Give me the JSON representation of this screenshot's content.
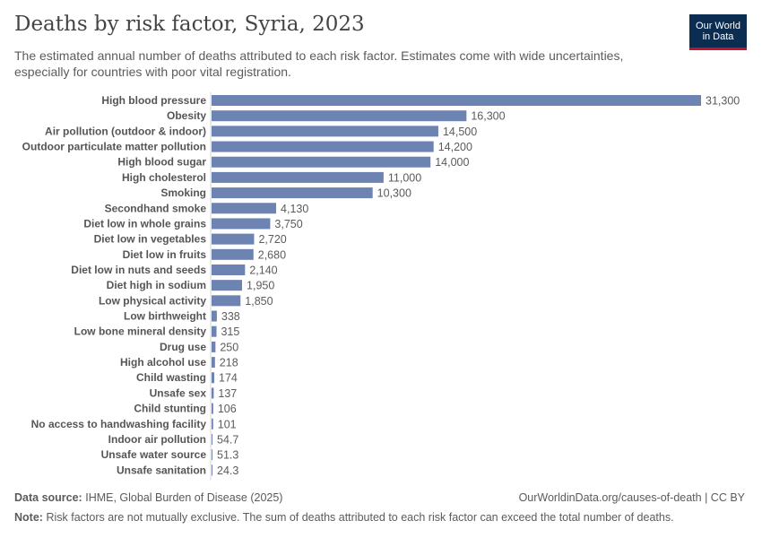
{
  "header": {
    "title": "Deaths by risk factor, Syria, 2023",
    "subtitle": "The estimated annual number of deaths attributed to each risk factor. Estimates come with wide uncertainties, especially for countries with poor vital registration.",
    "logo_line1": "Our World",
    "logo_line2": "in Data"
  },
  "colors": {
    "bar": "#6d83b2",
    "logo_bg": "#0b2d52",
    "logo_accent": "#c8102e"
  },
  "chart_data": {
    "type": "bar",
    "orientation": "horizontal",
    "title": "Deaths by risk factor, Syria, 2023",
    "xlabel": "",
    "ylabel": "",
    "xlim": [
      0,
      31300
    ],
    "categories": [
      "High blood pressure",
      "Obesity",
      "Air pollution (outdoor & indoor)",
      "Outdoor particulate matter pollution",
      "High blood sugar",
      "High cholesterol",
      "Smoking",
      "Secondhand smoke",
      "Diet low in whole grains",
      "Diet low in vegetables",
      "Diet low in fruits",
      "Diet low in nuts and seeds",
      "Diet high in sodium",
      "Low physical activity",
      "Low birthweight",
      "Low bone mineral density",
      "Drug use",
      "High alcohol use",
      "Child wasting",
      "Unsafe sex",
      "Child stunting",
      "No access to handwashing facility",
      "Indoor air pollution",
      "Unsafe water source",
      "Unsafe sanitation"
    ],
    "values": [
      31300,
      16300,
      14500,
      14200,
      14000,
      11000,
      10300,
      4130,
      3750,
      2720,
      2680,
      2140,
      1950,
      1850,
      338,
      315,
      250,
      218,
      174,
      137,
      106,
      101,
      54.7,
      51.3,
      24.3
    ],
    "value_labels": [
      "31,300",
      "16,300",
      "14,500",
      "14,200",
      "14,000",
      "11,000",
      "10,300",
      "4,130",
      "3,750",
      "2,720",
      "2,680",
      "2,140",
      "1,950",
      "1,850",
      "338",
      "315",
      "250",
      "218",
      "174",
      "137",
      "106",
      "101",
      "54.7",
      "51.3",
      "24.3"
    ]
  },
  "footer": {
    "source_label": "Data source:",
    "source_text": "IHME, Global Burden of Disease (2025)",
    "url_text": "OurWorldinData.org/causes-of-death | CC BY",
    "note_label": "Note:",
    "note_text": "Risk factors are not mutually exclusive. The sum of deaths attributed to each risk factor can exceed the total number of deaths."
  }
}
